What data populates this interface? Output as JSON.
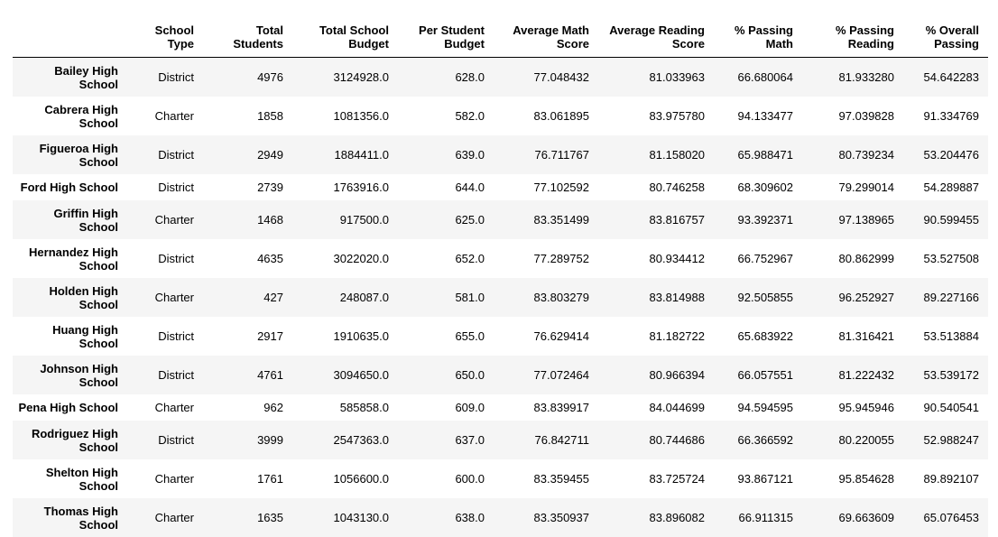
{
  "table": {
    "columns": [
      "",
      "School Type",
      "Total Students",
      "Total School Budget",
      "Per Student Budget",
      "Average Math Score",
      "Average Reading Score",
      "% Passing Math",
      "% Passing Reading",
      "% Overall Passing"
    ],
    "rows": [
      {
        "school": "Bailey High School",
        "type": "District",
        "students": "4976",
        "budget": "3124928.0",
        "per_student": "628.0",
        "math": "77.048432",
        "reading": "81.033963",
        "pass_math": "66.680064",
        "pass_reading": "81.933280",
        "overall": "54.642283"
      },
      {
        "school": "Cabrera High School",
        "type": "Charter",
        "students": "1858",
        "budget": "1081356.0",
        "per_student": "582.0",
        "math": "83.061895",
        "reading": "83.975780",
        "pass_math": "94.133477",
        "pass_reading": "97.039828",
        "overall": "91.334769"
      },
      {
        "school": "Figueroa High School",
        "type": "District",
        "students": "2949",
        "budget": "1884411.0",
        "per_student": "639.0",
        "math": "76.711767",
        "reading": "81.158020",
        "pass_math": "65.988471",
        "pass_reading": "80.739234",
        "overall": "53.204476"
      },
      {
        "school": "Ford High School",
        "type": "District",
        "students": "2739",
        "budget": "1763916.0",
        "per_student": "644.0",
        "math": "77.102592",
        "reading": "80.746258",
        "pass_math": "68.309602",
        "pass_reading": "79.299014",
        "overall": "54.289887"
      },
      {
        "school": "Griffin High School",
        "type": "Charter",
        "students": "1468",
        "budget": "917500.0",
        "per_student": "625.0",
        "math": "83.351499",
        "reading": "83.816757",
        "pass_math": "93.392371",
        "pass_reading": "97.138965",
        "overall": "90.599455"
      },
      {
        "school": "Hernandez High School",
        "type": "District",
        "students": "4635",
        "budget": "3022020.0",
        "per_student": "652.0",
        "math": "77.289752",
        "reading": "80.934412",
        "pass_math": "66.752967",
        "pass_reading": "80.862999",
        "overall": "53.527508"
      },
      {
        "school": "Holden High School",
        "type": "Charter",
        "students": "427",
        "budget": "248087.0",
        "per_student": "581.0",
        "math": "83.803279",
        "reading": "83.814988",
        "pass_math": "92.505855",
        "pass_reading": "96.252927",
        "overall": "89.227166"
      },
      {
        "school": "Huang High School",
        "type": "District",
        "students": "2917",
        "budget": "1910635.0",
        "per_student": "655.0",
        "math": "76.629414",
        "reading": "81.182722",
        "pass_math": "65.683922",
        "pass_reading": "81.316421",
        "overall": "53.513884"
      },
      {
        "school": "Johnson High School",
        "type": "District",
        "students": "4761",
        "budget": "3094650.0",
        "per_student": "650.0",
        "math": "77.072464",
        "reading": "80.966394",
        "pass_math": "66.057551",
        "pass_reading": "81.222432",
        "overall": "53.539172"
      },
      {
        "school": "Pena High School",
        "type": "Charter",
        "students": "962",
        "budget": "585858.0",
        "per_student": "609.0",
        "math": "83.839917",
        "reading": "84.044699",
        "pass_math": "94.594595",
        "pass_reading": "95.945946",
        "overall": "90.540541"
      },
      {
        "school": "Rodriguez High School",
        "type": "District",
        "students": "3999",
        "budget": "2547363.0",
        "per_student": "637.0",
        "math": "76.842711",
        "reading": "80.744686",
        "pass_math": "66.366592",
        "pass_reading": "80.220055",
        "overall": "52.988247"
      },
      {
        "school": "Shelton High School",
        "type": "Charter",
        "students": "1761",
        "budget": "1056600.0",
        "per_student": "600.0",
        "math": "83.359455",
        "reading": "83.725724",
        "pass_math": "93.867121",
        "pass_reading": "95.854628",
        "overall": "89.892107"
      },
      {
        "school": "Thomas High School",
        "type": "Charter",
        "students": "1635",
        "budget": "1043130.0",
        "per_student": "638.0",
        "math": "83.350937",
        "reading": "83.896082",
        "pass_math": "66.911315",
        "pass_reading": "69.663609",
        "overall": "65.076453"
      }
    ]
  },
  "colors": {
    "row_stripe": "#f5f5f5",
    "row_plain": "#ffffff",
    "header_rule": "#000000",
    "text": "#000000"
  }
}
